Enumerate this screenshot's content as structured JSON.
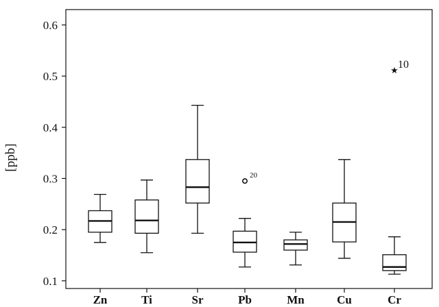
{
  "chart_data": {
    "type": "box",
    "ylabel": "[ppb]",
    "xlabel": "",
    "ylim": [
      0.085,
      0.63
    ],
    "yticks": [
      0.1,
      0.2,
      0.3,
      0.4,
      0.5,
      0.6
    ],
    "ytick_labels": [
      "0.1",
      "0.2",
      "0.3",
      "0.4",
      "0.5",
      "0.6"
    ],
    "grid": false,
    "categories": [
      "Zn",
      "Ti",
      "Sr",
      "Pb",
      "Mn",
      "Cu",
      "Cr"
    ],
    "boxes": [
      {
        "category": "Zn",
        "whisker_low": 0.175,
        "q1": 0.195,
        "median": 0.217,
        "q3": 0.237,
        "whisker_high": 0.269
      },
      {
        "category": "Ti",
        "whisker_low": 0.155,
        "q1": 0.193,
        "median": 0.218,
        "q3": 0.258,
        "whisker_high": 0.297
      },
      {
        "category": "Sr",
        "whisker_low": 0.193,
        "q1": 0.252,
        "median": 0.283,
        "q3": 0.337,
        "whisker_high": 0.443
      },
      {
        "category": "Pb",
        "whisker_low": 0.127,
        "q1": 0.156,
        "median": 0.175,
        "q3": 0.197,
        "whisker_high": 0.222
      },
      {
        "category": "Mn",
        "whisker_low": 0.131,
        "q1": 0.16,
        "median": 0.172,
        "q3": 0.18,
        "whisker_high": 0.195
      },
      {
        "category": "Cu",
        "whisker_low": 0.144,
        "q1": 0.176,
        "median": 0.215,
        "q3": 0.252,
        "whisker_high": 0.337
      },
      {
        "category": "Cr",
        "whisker_low": 0.113,
        "q1": 0.12,
        "median": 0.127,
        "q3": 0.151,
        "whisker_high": 0.186
      }
    ],
    "outliers": [
      {
        "category": "Pb",
        "value": 0.295,
        "marker": "circle",
        "label": "20"
      },
      {
        "category": "Cr",
        "value": 0.512,
        "marker": "star",
        "label": "10"
      }
    ],
    "colors": {
      "stroke": "#111111",
      "box_fill": "#ffffff",
      "background": "#ffffff"
    }
  }
}
